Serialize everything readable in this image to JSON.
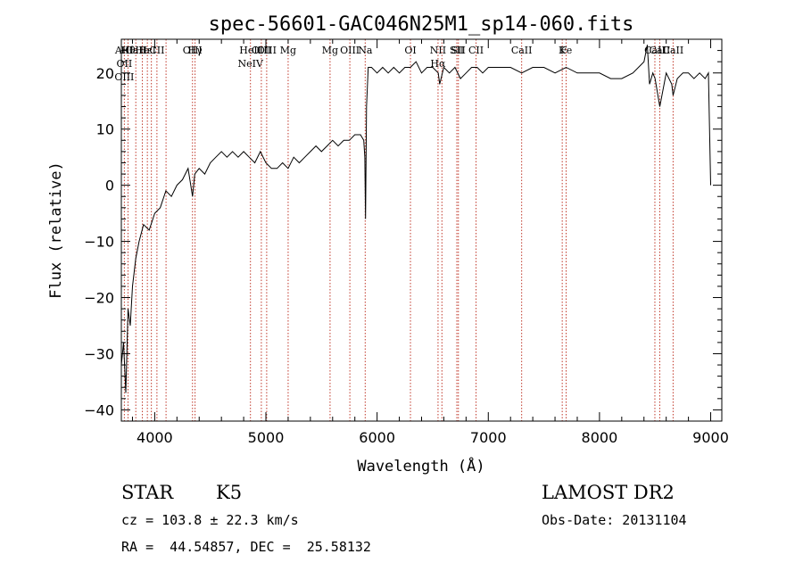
{
  "chart_data": {
    "type": "line",
    "title": "spec-56601-GAC046N25M1_sp14-060.fits",
    "xlabel": "Wavelength (Å)",
    "ylabel": "Flux (relative)",
    "xlim": [
      3700,
      9100
    ],
    "ylim": [
      -42,
      26
    ],
    "xticks": [
      4000,
      5000,
      6000,
      7000,
      8000,
      9000
    ],
    "yticks": [
      -40,
      -30,
      -20,
      -10,
      0,
      10,
      20
    ],
    "grid": false,
    "series": [
      {
        "x": [
          3700,
          3720,
          3740,
          3760,
          3780,
          3800,
          3830,
          3860,
          3900,
          3950,
          4000,
          4050,
          4100,
          4150,
          4200,
          4250,
          4300,
          4340,
          4360,
          4400,
          4450,
          4500,
          4550,
          4600,
          4650,
          4700,
          4750,
          4800,
          4850,
          4900,
          4950,
          5000,
          5050,
          5100,
          5150,
          5200,
          5250,
          5300,
          5350,
          5400,
          5450,
          5500,
          5550,
          5600,
          5650,
          5700,
          5750,
          5800,
          5850,
          5880,
          5890,
          5896,
          5905,
          5920,
          5950,
          6000,
          6050,
          6100,
          6150,
          6200,
          6250,
          6300,
          6350,
          6400,
          6450,
          6500,
          6550,
          6563,
          6600,
          6650,
          6700,
          6750,
          6800,
          6850,
          6900,
          6950,
          7000,
          7100,
          7200,
          7300,
          7400,
          7500,
          7600,
          7700,
          7800,
          7900,
          8000,
          8100,
          8200,
          8300,
          8400,
          8430,
          8450,
          8480,
          8500,
          8542,
          8600,
          8650,
          8662,
          8700,
          8750,
          8800,
          8850,
          8900,
          8950,
          8980,
          9000
        ],
        "y": [
          -32,
          -28,
          -37,
          -22,
          -25,
          -18,
          -13,
          -10,
          -7,
          -8,
          -5,
          -4,
          -1,
          -2,
          0,
          1,
          3,
          -2,
          2,
          3,
          2,
          4,
          5,
          6,
          5,
          6,
          5,
          6,
          5,
          4,
          6,
          4,
          3,
          3,
          4,
          3,
          5,
          4,
          5,
          6,
          7,
          6,
          7,
          8,
          7,
          8,
          8,
          9,
          9,
          8,
          5,
          -6,
          14,
          21,
          21,
          20,
          21,
          20,
          21,
          20,
          21,
          21,
          22,
          20,
          21,
          21,
          20,
          18,
          21,
          20,
          21,
          19,
          20,
          21,
          21,
          20,
          21,
          21,
          21,
          20,
          21,
          21,
          20,
          21,
          20,
          20,
          20,
          19,
          19,
          20,
          22,
          25,
          18,
          20,
          19,
          14,
          20,
          18,
          16,
          19,
          20,
          20,
          19,
          20,
          19,
          20,
          0
        ]
      }
    ],
    "lines": [
      {
        "x": 3727,
        "labels": [
          "AIII",
          "OII",
          "OIII"
        ]
      },
      {
        "x": 3760,
        "labels": [
          "Hθ"
        ]
      },
      {
        "x": 3830,
        "labels": [
          "CaII"
        ]
      },
      {
        "x": 3889,
        "labels": [
          "He"
        ]
      },
      {
        "x": 3934,
        "labels": [
          "HεI"
        ]
      },
      {
        "x": 3970,
        "labels": []
      },
      {
        "x": 4020,
        "labels": [
          "CII"
        ]
      },
      {
        "x": 4102,
        "labels": []
      },
      {
        "x": 4340,
        "labels": [
          "OIII"
        ]
      },
      {
        "x": 4363,
        "labels": [
          "Hγ"
        ]
      },
      {
        "x": 4861,
        "labels": [
          "HeII",
          "NeIV"
        ]
      },
      {
        "x": 4959,
        "labels": [
          "OIII"
        ]
      },
      {
        "x": 5007,
        "labels": [
          "OIII"
        ]
      },
      {
        "x": 5200,
        "labels": [
          "Mg"
        ]
      },
      {
        "x": 5577,
        "labels": [
          "Mg"
        ]
      },
      {
        "x": 5755,
        "labels": [
          "OIII"
        ]
      },
      {
        "x": 5893,
        "labels": [
          "Na"
        ]
      },
      {
        "x": 6300,
        "labels": [
          "OI"
        ]
      },
      {
        "x": 6548,
        "labels": [
          "NII",
          "Hα"
        ]
      },
      {
        "x": 6583,
        "labels": []
      },
      {
        "x": 6717,
        "labels": [
          "SII"
        ]
      },
      {
        "x": 6731,
        "labels": [
          "SII"
        ]
      },
      {
        "x": 6890,
        "labels": [
          "CII"
        ]
      },
      {
        "x": 7300,
        "labels": [
          "CaII"
        ]
      },
      {
        "x": 7665,
        "labels": [
          "K"
        ]
      },
      {
        "x": 7700,
        "labels": [
          "Fe"
        ]
      },
      {
        "x": 8498,
        "labels": [
          "CaII"
        ]
      },
      {
        "x": 8542,
        "labels": [
          "CaII"
        ]
      },
      {
        "x": 8662,
        "labels": [
          "CaII"
        ]
      }
    ]
  },
  "info": {
    "class": "STAR",
    "subclass": "K5",
    "cz": "cz = 103.8 ± 22.3 km/s",
    "coords": "RA =  44.54857, DEC =  25.58132",
    "survey": "LAMOST DR2",
    "obs_date": "Obs-Date: 20131104"
  },
  "colors": {
    "line": "#000000",
    "marker": "#c0392b"
  }
}
